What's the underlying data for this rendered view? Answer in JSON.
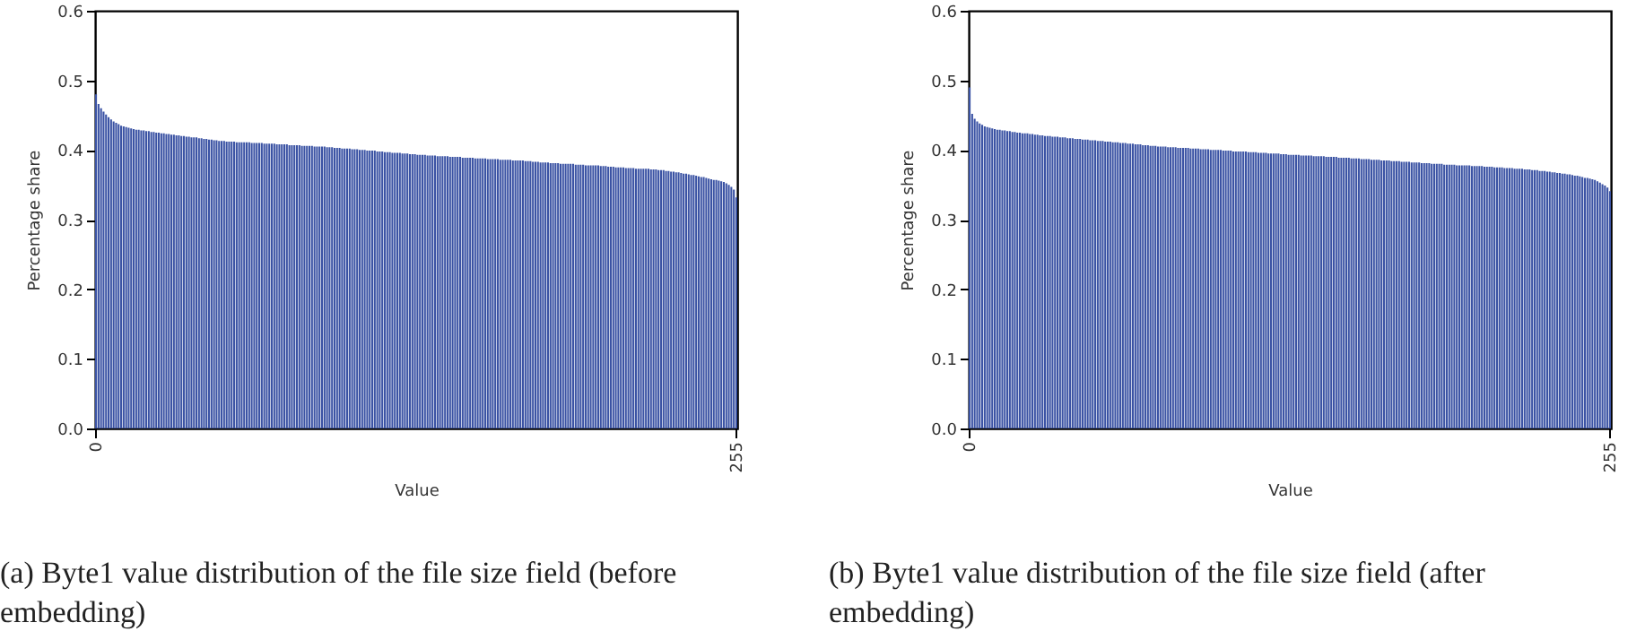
{
  "chart_data": [
    {
      "type": "bar",
      "xlabel": "Value",
      "ylabel": "Percentage share",
      "color": "#3b53a4",
      "ylim": [
        0,
        0.6
      ],
      "yticks": [
        {
          "value": 0,
          "label": "0.0"
        },
        0.1,
        0.2,
        0.3,
        0.4,
        0.5,
        0.6
      ],
      "grid": false,
      "annotations": [
        "(a) Byte1 value distribution of the file size field (before embedding)"
      ],
      "categories": [
        "0",
        null,
        null,
        null,
        null,
        null,
        null,
        null,
        null,
        null,
        null,
        null,
        null,
        null,
        null,
        null,
        null,
        null,
        null,
        null,
        null,
        null,
        null,
        null,
        null,
        null,
        null,
        null,
        null,
        null,
        null,
        null,
        null,
        null,
        null,
        null,
        null,
        null,
        null,
        null,
        null,
        null,
        null,
        null,
        null,
        null,
        null,
        null,
        null,
        null,
        null,
        null,
        null,
        null,
        null,
        null,
        null,
        null,
        null,
        null,
        null,
        null,
        null,
        null,
        null,
        null,
        null,
        null,
        null,
        null,
        null,
        null,
        null,
        null,
        null,
        null,
        null,
        null,
        null,
        null,
        null,
        null,
        null,
        null,
        null,
        null,
        null,
        null,
        null,
        null,
        null,
        null,
        null,
        null,
        null,
        null,
        null,
        null,
        null,
        null,
        null,
        null,
        null,
        null,
        null,
        null,
        null,
        null,
        null,
        null,
        null,
        null,
        null,
        null,
        null,
        null,
        null,
        null,
        null,
        null,
        null,
        null,
        null,
        null,
        null,
        null,
        null,
        null,
        null,
        null,
        null,
        null,
        null,
        null,
        null,
        null,
        null,
        null,
        null,
        null,
        null,
        null,
        null,
        null,
        null,
        null,
        null,
        null,
        null,
        null,
        null,
        null,
        null,
        null,
        null,
        null,
        null,
        null,
        null,
        null,
        null,
        null,
        null,
        null,
        null,
        null,
        null,
        null,
        null,
        null,
        null,
        null,
        null,
        null,
        null,
        null,
        null,
        null,
        null,
        null,
        null,
        null,
        null,
        null,
        null,
        null,
        null,
        null,
        null,
        null,
        null,
        null,
        null,
        null,
        null,
        null,
        null,
        null,
        null,
        null,
        null,
        null,
        null,
        null,
        null,
        null,
        null,
        null,
        null,
        null,
        null,
        null,
        null,
        null,
        null,
        null,
        null,
        null,
        null,
        null,
        null,
        null,
        null,
        null,
        null,
        null,
        null,
        null,
        null,
        null,
        null,
        null,
        null,
        null,
        null,
        null,
        null,
        null,
        null,
        null,
        null,
        null,
        null,
        null,
        null,
        null,
        null,
        null,
        null,
        null,
        null,
        null,
        null,
        null,
        null,
        "255"
      ],
      "values": [
        0.48,
        0.466,
        0.46,
        0.455,
        0.451,
        0.447,
        0.444,
        0.441,
        0.439,
        0.437,
        0.435,
        0.434,
        0.433,
        0.432,
        0.431,
        0.43,
        0.429,
        0.429,
        0.428,
        0.428,
        0.427,
        0.427,
        0.426,
        0.426,
        0.425,
        0.425,
        0.424,
        0.424,
        0.423,
        0.423,
        0.422,
        0.422,
        0.421,
        0.421,
        0.42,
        0.42,
        0.419,
        0.419,
        0.418,
        0.418,
        0.418,
        0.417,
        0.417,
        0.416,
        0.416,
        0.415,
        0.415,
        0.414,
        0.414,
        0.413,
        0.413,
        0.413,
        0.412,
        0.412,
        0.412,
        0.412,
        0.411,
        0.411,
        0.411,
        0.411,
        0.411,
        0.411,
        0.41,
        0.41,
        0.41,
        0.41,
        0.41,
        0.409,
        0.409,
        0.409,
        0.409,
        0.409,
        0.408,
        0.408,
        0.408,
        0.408,
        0.408,
        0.407,
        0.407,
        0.407,
        0.407,
        0.407,
        0.406,
        0.406,
        0.406,
        0.406,
        0.406,
        0.405,
        0.405,
        0.405,
        0.405,
        0.405,
        0.404,
        0.404,
        0.404,
        0.403,
        0.403,
        0.403,
        0.402,
        0.402,
        0.402,
        0.402,
        0.401,
        0.401,
        0.401,
        0.4,
        0.4,
        0.4,
        0.399,
        0.399,
        0.399,
        0.399,
        0.398,
        0.398,
        0.398,
        0.397,
        0.397,
        0.397,
        0.396,
        0.396,
        0.396,
        0.396,
        0.395,
        0.395,
        0.395,
        0.394,
        0.394,
        0.394,
        0.393,
        0.393,
        0.393,
        0.393,
        0.392,
        0.392,
        0.392,
        0.392,
        0.391,
        0.391,
        0.391,
        0.391,
        0.391,
        0.39,
        0.39,
        0.39,
        0.39,
        0.39,
        0.389,
        0.389,
        0.389,
        0.389,
        0.389,
        0.388,
        0.388,
        0.388,
        0.388,
        0.388,
        0.387,
        0.387,
        0.387,
        0.387,
        0.387,
        0.386,
        0.386,
        0.386,
        0.386,
        0.386,
        0.385,
        0.385,
        0.385,
        0.385,
        0.385,
        0.384,
        0.384,
        0.384,
        0.383,
        0.383,
        0.383,
        0.382,
        0.382,
        0.382,
        0.382,
        0.381,
        0.381,
        0.381,
        0.381,
        0.38,
        0.38,
        0.38,
        0.38,
        0.38,
        0.38,
        0.379,
        0.379,
        0.379,
        0.379,
        0.378,
        0.378,
        0.378,
        0.378,
        0.378,
        0.378,
        0.377,
        0.377,
        0.377,
        0.376,
        0.376,
        0.376,
        0.375,
        0.375,
        0.375,
        0.375,
        0.374,
        0.374,
        0.374,
        0.374,
        0.373,
        0.373,
        0.373,
        0.373,
        0.373,
        0.373,
        0.372,
        0.372,
        0.372,
        0.371,
        0.371,
        0.371,
        0.37,
        0.37,
        0.369,
        0.369,
        0.368,
        0.368,
        0.367,
        0.366,
        0.366,
        0.365,
        0.364,
        0.364,
        0.363,
        0.362,
        0.361,
        0.361,
        0.36,
        0.359,
        0.358,
        0.357,
        0.357,
        0.356,
        0.355,
        0.354,
        0.352,
        0.35,
        0.347,
        0.343,
        0.332
      ]
    },
    {
      "type": "bar",
      "xlabel": "Value",
      "ylabel": "Percentage share",
      "color": "#3b53a4",
      "ylim": [
        0,
        0.6
      ],
      "yticks": [
        {
          "value": 0,
          "label": "0.0"
        },
        0.1,
        0.2,
        0.3,
        0.4,
        0.5,
        0.6
      ],
      "grid": false,
      "annotations": [
        "(b) Byte1 value distribution of the file size field (after embedding)"
      ],
      "categories": [
        "0",
        null,
        null,
        null,
        null,
        null,
        null,
        null,
        null,
        null,
        null,
        null,
        null,
        null,
        null,
        null,
        null,
        null,
        null,
        null,
        null,
        null,
        null,
        null,
        null,
        null,
        null,
        null,
        null,
        null,
        null,
        null,
        null,
        null,
        null,
        null,
        null,
        null,
        null,
        null,
        null,
        null,
        null,
        null,
        null,
        null,
        null,
        null,
        null,
        null,
        null,
        null,
        null,
        null,
        null,
        null,
        null,
        null,
        null,
        null,
        null,
        null,
        null,
        null,
        null,
        null,
        null,
        null,
        null,
        null,
        null,
        null,
        null,
        null,
        null,
        null,
        null,
        null,
        null,
        null,
        null,
        null,
        null,
        null,
        null,
        null,
        null,
        null,
        null,
        null,
        null,
        null,
        null,
        null,
        null,
        null,
        null,
        null,
        null,
        null,
        null,
        null,
        null,
        null,
        null,
        null,
        null,
        null,
        null,
        null,
        null,
        null,
        null,
        null,
        null,
        null,
        null,
        null,
        null,
        null,
        null,
        null,
        null,
        null,
        null,
        null,
        null,
        null,
        null,
        null,
        null,
        null,
        null,
        null,
        null,
        null,
        null,
        null,
        null,
        null,
        null,
        null,
        null,
        null,
        null,
        null,
        null,
        null,
        null,
        null,
        null,
        null,
        null,
        null,
        null,
        null,
        null,
        null,
        null,
        null,
        null,
        null,
        null,
        null,
        null,
        null,
        null,
        null,
        null,
        null,
        null,
        null,
        null,
        null,
        null,
        null,
        null,
        null,
        null,
        null,
        null,
        null,
        null,
        null,
        null,
        null,
        null,
        null,
        null,
        null,
        null,
        null,
        null,
        null,
        null,
        null,
        null,
        null,
        null,
        null,
        null,
        null,
        null,
        null,
        null,
        null,
        null,
        null,
        null,
        null,
        null,
        null,
        null,
        null,
        null,
        null,
        null,
        null,
        null,
        null,
        null,
        null,
        null,
        null,
        null,
        null,
        null,
        null,
        null,
        null,
        null,
        null,
        null,
        null,
        null,
        null,
        null,
        null,
        null,
        null,
        null,
        null,
        null,
        null,
        null,
        null,
        null,
        null,
        null,
        null,
        null,
        null,
        null,
        null,
        null,
        "255"
      ],
      "values": [
        0.49,
        0.452,
        0.445,
        0.441,
        0.438,
        0.436,
        0.434,
        0.433,
        0.432,
        0.431,
        0.43,
        0.429,
        0.429,
        0.428,
        0.428,
        0.427,
        0.427,
        0.426,
        0.426,
        0.425,
        0.425,
        0.424,
        0.424,
        0.424,
        0.423,
        0.423,
        0.422,
        0.422,
        0.421,
        0.421,
        0.42,
        0.42,
        0.42,
        0.419,
        0.419,
        0.419,
        0.418,
        0.418,
        0.418,
        0.417,
        0.417,
        0.417,
        0.416,
        0.416,
        0.416,
        0.415,
        0.415,
        0.415,
        0.414,
        0.414,
        0.414,
        0.413,
        0.413,
        0.413,
        0.412,
        0.412,
        0.412,
        0.411,
        0.411,
        0.411,
        0.41,
        0.41,
        0.41,
        0.409,
        0.409,
        0.409,
        0.408,
        0.408,
        0.408,
        0.407,
        0.407,
        0.407,
        0.406,
        0.406,
        0.406,
        0.405,
        0.405,
        0.405,
        0.405,
        0.404,
        0.404,
        0.404,
        0.404,
        0.403,
        0.403,
        0.403,
        0.403,
        0.403,
        0.402,
        0.402,
        0.402,
        0.402,
        0.401,
        0.401,
        0.401,
        0.401,
        0.4,
        0.4,
        0.4,
        0.4,
        0.4,
        0.399,
        0.399,
        0.399,
        0.399,
        0.398,
        0.398,
        0.398,
        0.398,
        0.398,
        0.398,
        0.397,
        0.397,
        0.397,
        0.397,
        0.396,
        0.396,
        0.396,
        0.396,
        0.395,
        0.395,
        0.395,
        0.395,
        0.395,
        0.394,
        0.394,
        0.394,
        0.393,
        0.393,
        0.393,
        0.393,
        0.393,
        0.392,
        0.392,
        0.392,
        0.392,
        0.392,
        0.391,
        0.391,
        0.391,
        0.391,
        0.391,
        0.39,
        0.39,
        0.39,
        0.39,
        0.39,
        0.389,
        0.389,
        0.389,
        0.389,
        0.389,
        0.388,
        0.388,
        0.388,
        0.388,
        0.387,
        0.387,
        0.387,
        0.387,
        0.386,
        0.386,
        0.386,
        0.386,
        0.385,
        0.385,
        0.385,
        0.385,
        0.384,
        0.384,
        0.384,
        0.384,
        0.383,
        0.383,
        0.383,
        0.383,
        0.382,
        0.382,
        0.382,
        0.382,
        0.381,
        0.381,
        0.381,
        0.381,
        0.38,
        0.38,
        0.38,
        0.38,
        0.38,
        0.379,
        0.379,
        0.379,
        0.379,
        0.379,
        0.378,
        0.378,
        0.378,
        0.378,
        0.378,
        0.378,
        0.377,
        0.377,
        0.377,
        0.377,
        0.377,
        0.376,
        0.376,
        0.376,
        0.376,
        0.375,
        0.375,
        0.375,
        0.375,
        0.374,
        0.374,
        0.374,
        0.374,
        0.373,
        0.373,
        0.373,
        0.373,
        0.372,
        0.372,
        0.372,
        0.371,
        0.371,
        0.371,
        0.37,
        0.37,
        0.37,
        0.369,
        0.369,
        0.368,
        0.368,
        0.367,
        0.367,
        0.366,
        0.366,
        0.365,
        0.365,
        0.364,
        0.363,
        0.363,
        0.362,
        0.361,
        0.36,
        0.36,
        0.359,
        0.358,
        0.357,
        0.355,
        0.353,
        0.351,
        0.349,
        0.346,
        0.341
      ]
    }
  ]
}
